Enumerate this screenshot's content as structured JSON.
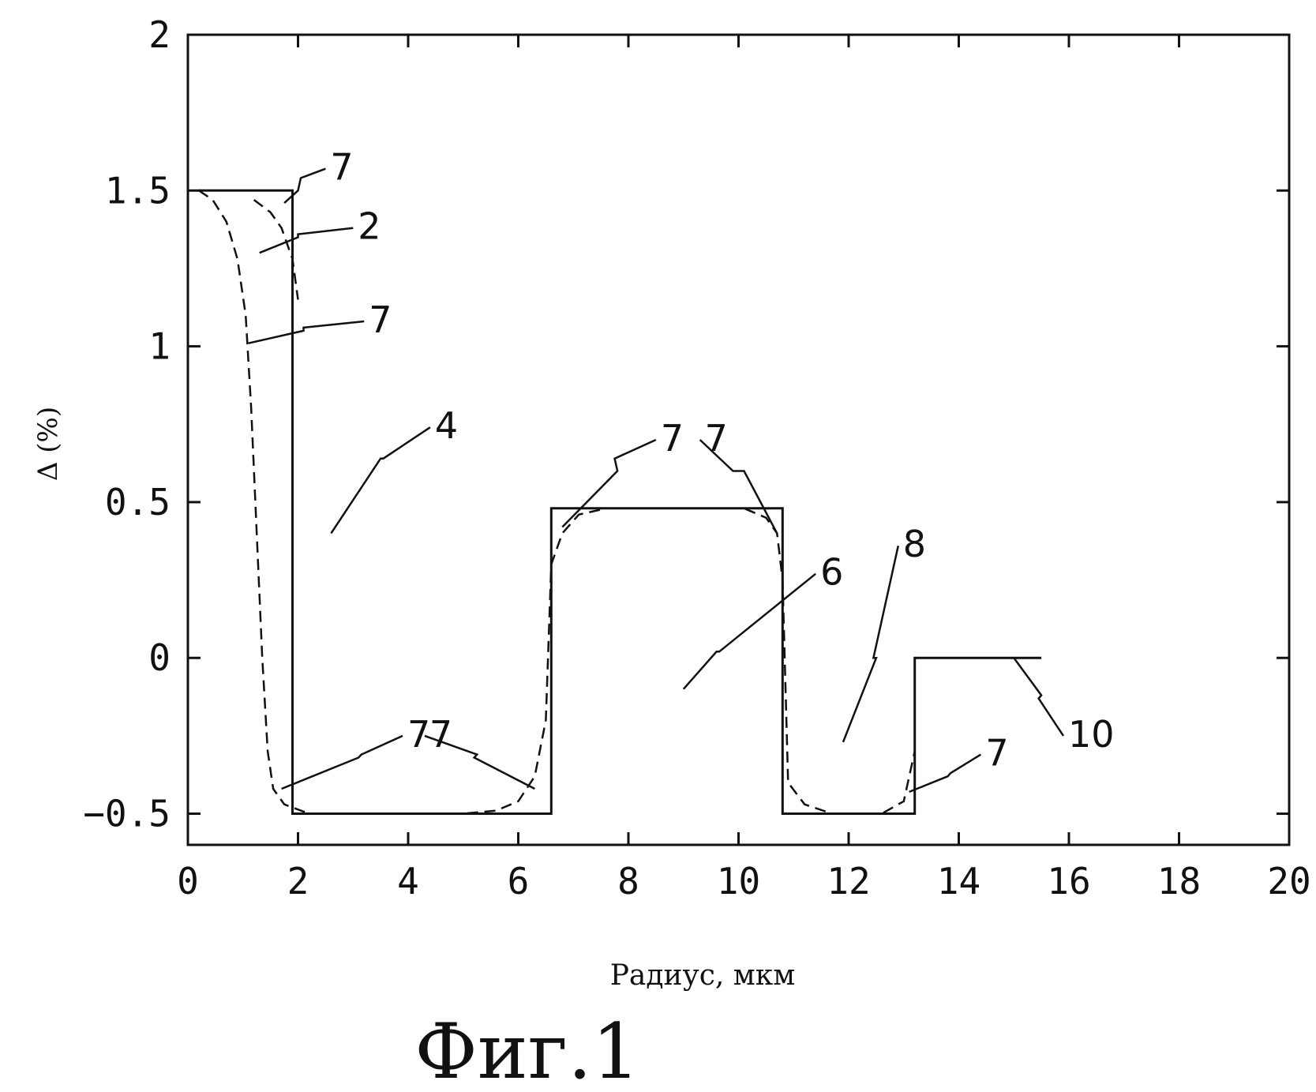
{
  "chart_data": {
    "type": "line",
    "title": "",
    "xlabel": "Радиус, мкм",
    "ylabel": "Δ (%)",
    "xlim": [
      0,
      20
    ],
    "ylim": [
      -0.6,
      2
    ],
    "x_ticks": [
      "0",
      "2",
      "4",
      "6",
      "8",
      "10",
      "12",
      "14",
      "16",
      "18",
      "20"
    ],
    "y_ticks": [
      "−0.5",
      "0",
      "0.5",
      "1",
      "1.5",
      "2"
    ],
    "y_tick_values": [
      -0.5,
      0,
      0.5,
      1,
      1.5,
      2
    ],
    "grid": false,
    "series": [
      {
        "style": "solid",
        "points": [
          [
            0.2,
            1.5
          ],
          [
            1.9,
            1.5
          ],
          [
            1.9,
            -0.5
          ],
          [
            6.6,
            -0.5
          ],
          [
            6.6,
            0.48
          ],
          [
            10.8,
            0.48
          ],
          [
            10.8,
            -0.5
          ],
          [
            13.2,
            -0.5
          ],
          [
            13.2,
            0
          ],
          [
            15.5,
            0
          ]
        ]
      },
      {
        "style": "dashed",
        "points": [
          [
            0.2,
            1.5
          ],
          [
            0.45,
            1.47
          ],
          [
            0.7,
            1.4
          ],
          [
            0.9,
            1.28
          ],
          [
            1.05,
            1.1
          ],
          [
            1.15,
            0.8
          ],
          [
            1.25,
            0.4
          ],
          [
            1.35,
            0.0
          ],
          [
            1.45,
            -0.3
          ],
          [
            1.55,
            -0.42
          ],
          [
            1.75,
            -0.47
          ],
          [
            2.2,
            -0.5
          ],
          [
            5.0,
            -0.5
          ],
          [
            5.6,
            -0.49
          ],
          [
            6.0,
            -0.46
          ],
          [
            6.3,
            -0.38
          ],
          [
            6.5,
            -0.2
          ],
          [
            6.6,
            0.3
          ],
          [
            6.8,
            0.4
          ],
          [
            7.1,
            0.46
          ],
          [
            7.6,
            0.48
          ],
          [
            10.1,
            0.48
          ],
          [
            10.5,
            0.45
          ],
          [
            10.7,
            0.4
          ],
          [
            10.8,
            0.25
          ],
          [
            10.9,
            -0.4
          ],
          [
            11.2,
            -0.47
          ],
          [
            11.7,
            -0.5
          ],
          [
            12.6,
            -0.5
          ],
          [
            13.0,
            -0.46
          ],
          [
            13.2,
            -0.3
          ]
        ]
      },
      {
        "style": "dashed",
        "points": [
          [
            1.2,
            1.47
          ],
          [
            1.5,
            1.43
          ],
          [
            1.7,
            1.38
          ],
          [
            1.9,
            1.28
          ],
          [
            2.0,
            1.15
          ]
        ]
      }
    ],
    "annotations": [
      {
        "text": "7",
        "leader": [
          [
            1.75,
            1.46
          ],
          [
            2.0,
            1.5
          ],
          [
            2.05,
            1.54
          ],
          [
            2.5,
            1.57
          ]
        ]
      },
      {
        "text": "2",
        "leader": [
          [
            1.3,
            1.3
          ],
          [
            2.0,
            1.35
          ],
          [
            2.0,
            1.36
          ],
          [
            3.0,
            1.38
          ]
        ]
      },
      {
        "text": "7",
        "leader": [
          [
            1.1,
            1.01
          ],
          [
            2.1,
            1.05
          ],
          [
            2.1,
            1.06
          ],
          [
            3.2,
            1.08
          ]
        ]
      },
      {
        "text": "4",
        "leader": [
          [
            2.6,
            0.4
          ],
          [
            3.5,
            0.64
          ],
          [
            3.55,
            0.64
          ],
          [
            4.4,
            0.74
          ]
        ]
      },
      {
        "text": "7",
        "leader": [
          [
            6.8,
            0.42
          ],
          [
            7.8,
            0.6
          ],
          [
            7.75,
            0.64
          ],
          [
            8.5,
            0.7
          ]
        ]
      },
      {
        "text": "7",
        "leader": [
          [
            10.7,
            0.4
          ],
          [
            10.1,
            0.6
          ],
          [
            9.9,
            0.6
          ],
          [
            9.3,
            0.7
          ]
        ]
      },
      {
        "text": "6",
        "leader": [
          [
            9.0,
            -0.1
          ],
          [
            9.6,
            0.02
          ],
          [
            9.65,
            0.02
          ],
          [
            11.4,
            0.27
          ]
        ]
      },
      {
        "text": "8",
        "leader": [
          [
            11.9,
            -0.27
          ],
          [
            12.5,
            0.0
          ],
          [
            12.45,
            0.0
          ],
          [
            12.9,
            0.36
          ]
        ]
      },
      {
        "text": "7",
        "leader": [
          [
            1.7,
            -0.42
          ],
          [
            3.1,
            -0.32
          ],
          [
            3.15,
            -0.31
          ],
          [
            3.9,
            -0.25
          ]
        ]
      },
      {
        "text": "7",
        "leader": [
          [
            6.3,
            -0.42
          ],
          [
            5.2,
            -0.32
          ],
          [
            5.25,
            -0.31
          ],
          [
            4.3,
            -0.25
          ]
        ]
      },
      {
        "text": "7",
        "leader": [
          [
            13.1,
            -0.43
          ],
          [
            13.8,
            -0.38
          ],
          [
            13.85,
            -0.37
          ],
          [
            14.4,
            -0.31
          ]
        ]
      },
      {
        "text": "10",
        "leader": [
          [
            15.0,
            0.0
          ],
          [
            15.5,
            -0.12
          ],
          [
            15.45,
            -0.13
          ],
          [
            15.9,
            -0.25
          ]
        ]
      }
    ],
    "caption": "Фиг.1"
  }
}
